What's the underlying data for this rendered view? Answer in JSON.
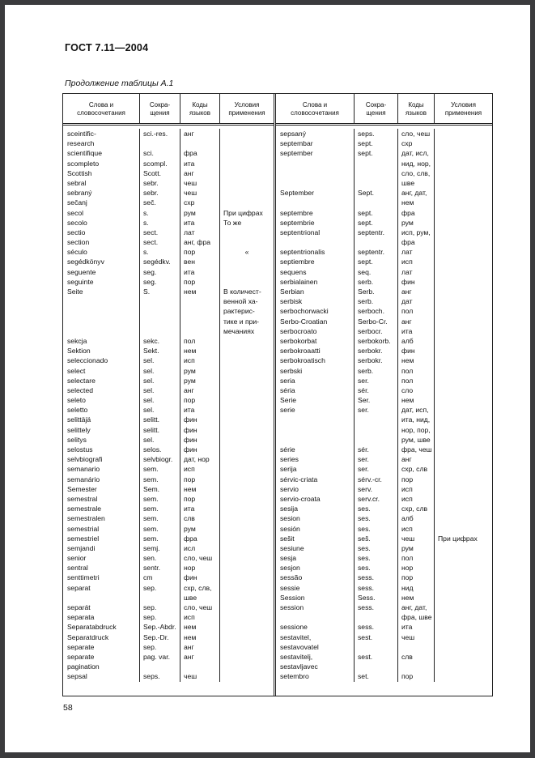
{
  "page": {
    "standard": "ГОСТ 7.11—2004",
    "table_caption": "Продолжение таблицы А.1",
    "page_number": "58"
  },
  "table": {
    "column_headers": [
      [
        "Слова и",
        "словосочетания"
      ],
      [
        "Сокра-",
        "щения"
      ],
      [
        "Коды",
        "языков"
      ],
      [
        "Условия",
        "применения"
      ]
    ],
    "left_rows": [
      [
        "sceintific-",
        "sci.-res.",
        "анг",
        ""
      ],
      [
        "research",
        "",
        "",
        ""
      ],
      [
        "scientifique",
        "sci.",
        "фра",
        ""
      ],
      [
        "scompleto",
        "scompl.",
        "ита",
        ""
      ],
      [
        "Scottish",
        "Scott.",
        "анг",
        ""
      ],
      [
        "sebral",
        "sebr.",
        "чеш",
        ""
      ],
      [
        "sebraný",
        "sebr.",
        "чеш",
        ""
      ],
      [
        "sečanj",
        "seč.",
        "схр",
        ""
      ],
      [
        "secol",
        "s.",
        "рум",
        "При цифрах"
      ],
      [
        "secolo",
        "s.",
        "ита",
        "То же"
      ],
      [
        "sectio",
        "sect.",
        "лат",
        ""
      ],
      [
        "section",
        "sect.",
        "анг, фра",
        ""
      ],
      [
        "século",
        "s.",
        "пор",
        "«"
      ],
      [
        "segédkönyv",
        "segédkv.",
        "вен",
        ""
      ],
      [
        "seguente",
        "seg.",
        "ита",
        ""
      ],
      [
        "seguinte",
        "seg.",
        "пор",
        ""
      ],
      [
        "Seite",
        "S.",
        "нем",
        "В количест-"
      ],
      [
        "",
        "",
        "",
        "венной ха-"
      ],
      [
        "",
        "",
        "",
        "рактерис-"
      ],
      [
        "",
        "",
        "",
        "тике и при-"
      ],
      [
        "",
        "",
        "",
        "мечаниях"
      ],
      [
        "sekcja",
        "sekc.",
        "пол",
        ""
      ],
      [
        "Sektion",
        "Sekt.",
        "нем",
        ""
      ],
      [
        "seleccionado",
        "sel.",
        "исп",
        ""
      ],
      [
        "select",
        "sel.",
        "рум",
        ""
      ],
      [
        "selectare",
        "sel.",
        "рум",
        ""
      ],
      [
        "selected",
        "sel.",
        "анг",
        ""
      ],
      [
        "seleto",
        "sel.",
        "пор",
        ""
      ],
      [
        "seletto",
        "sel.",
        "ита",
        ""
      ],
      [
        "selittäjä",
        "selitt.",
        "фин",
        ""
      ],
      [
        "selittely",
        "selitt.",
        "фин",
        ""
      ],
      [
        "selitys",
        "sel.",
        "фин",
        ""
      ],
      [
        "selostus",
        "selos.",
        "фин",
        ""
      ],
      [
        "selvbiografi",
        "selvbiogr.",
        "дат, нор",
        ""
      ],
      [
        "semanario",
        "sem.",
        "исп",
        ""
      ],
      [
        "semanário",
        "sem.",
        "пор",
        ""
      ],
      [
        "Semester",
        "Sem.",
        "нем",
        ""
      ],
      [
        "semestral",
        "sem.",
        "пор",
        ""
      ],
      [
        "semestrale",
        "sem.",
        "ита",
        ""
      ],
      [
        "semestralen",
        "sem.",
        "слв",
        ""
      ],
      [
        "semestrial",
        "sem.",
        "рум",
        ""
      ],
      [
        "semestriel",
        "sem.",
        "фра",
        ""
      ],
      [
        "semjandi",
        "semj.",
        "исл",
        ""
      ],
      [
        "senior",
        "sen.",
        "сло, чеш",
        ""
      ],
      [
        "sentral",
        "sentr.",
        "нор",
        ""
      ],
      [
        "senttimetri",
        "cm",
        "фин",
        ""
      ],
      [
        "separat",
        "sep.",
        "схр, слв,",
        ""
      ],
      [
        "",
        "",
        "шве",
        ""
      ],
      [
        "separát",
        "sep.",
        "сло, чеш",
        ""
      ],
      [
        "separata",
        "sep.",
        "исп",
        ""
      ],
      [
        "Separatabdruck",
        "Sep.-Abdr.",
        "нем",
        ""
      ],
      [
        "Separatdruck",
        "Sep.-Dr.",
        "нем",
        ""
      ],
      [
        "separate",
        "sep.",
        "анг",
        ""
      ],
      [
        "separate",
        "pag. var.",
        "анг",
        ""
      ],
      [
        "pagination",
        "",
        "",
        ""
      ],
      [
        "sepsal",
        "seps.",
        "чеш",
        ""
      ]
    ],
    "right_rows": [
      [
        "sepsaný",
        "seps.",
        "сло, чеш",
        ""
      ],
      [
        "septembar",
        "sept.",
        "схр",
        ""
      ],
      [
        "september",
        "sept.",
        "дат, исл,",
        ""
      ],
      [
        "",
        "",
        "нид, нор,",
        ""
      ],
      [
        "",
        "",
        "сло, слв,",
        ""
      ],
      [
        "",
        "",
        "шве",
        ""
      ],
      [
        "September",
        "Sept.",
        "анг, дат,",
        ""
      ],
      [
        "",
        "",
        "нем",
        ""
      ],
      [
        "septembre",
        "sept.",
        "фра",
        ""
      ],
      [
        "septembrie",
        "sept.",
        "рум",
        ""
      ],
      [
        "septentrional",
        "septentr.",
        "исп, рум,",
        ""
      ],
      [
        "",
        "",
        "фра",
        ""
      ],
      [
        "septentrionalis",
        "septentr.",
        "лат",
        ""
      ],
      [
        "septiembre",
        "sept.",
        "исп",
        ""
      ],
      [
        "sequens",
        "seq.",
        "лат",
        ""
      ],
      [
        "serbialainen",
        "serb.",
        "фин",
        ""
      ],
      [
        "Serbian",
        "Serb.",
        "анг",
        ""
      ],
      [
        "serbisk",
        "serb.",
        "дат",
        ""
      ],
      [
        "serbochorwacki",
        "serboch.",
        "пол",
        ""
      ],
      [
        "Serbo-Croatian",
        "Serbo-Cr.",
        "анг",
        ""
      ],
      [
        "serbocroato",
        "serbocr.",
        "ита",
        ""
      ],
      [
        "serbokorbat",
        "serbokorb.",
        "алб",
        ""
      ],
      [
        "serbokroaatti",
        "serbokr.",
        "фин",
        ""
      ],
      [
        "serbokroatisch",
        "serbokr.",
        "нем",
        ""
      ],
      [
        "serbski",
        "serb.",
        "пол",
        ""
      ],
      [
        "seria",
        "ser.",
        "пол",
        ""
      ],
      [
        "séria",
        "sér.",
        "сло",
        ""
      ],
      [
        "Serie",
        "Ser.",
        "нем",
        ""
      ],
      [
        "serie",
        "ser.",
        "дат, исп,",
        ""
      ],
      [
        "",
        "",
        "ита, нид,",
        ""
      ],
      [
        "",
        "",
        "нор, пор,",
        ""
      ],
      [
        "",
        "",
        "рум, шве",
        ""
      ],
      [
        "série",
        "sér.",
        "фра, чеш",
        ""
      ],
      [
        "series",
        "ser.",
        "анг",
        ""
      ],
      [
        "serija",
        "ser.",
        "схр, слв",
        ""
      ],
      [
        "sérvic-criata",
        "sérv.-cr.",
        "пор",
        ""
      ],
      [
        "servio",
        "serv.",
        "исп",
        ""
      ],
      [
        "servio-croata",
        "serv.cr.",
        "исп",
        ""
      ],
      [
        "sesija",
        "ses.",
        "схр, слв",
        ""
      ],
      [
        "sesion",
        "ses.",
        "алб",
        ""
      ],
      [
        "sesión",
        "ses.",
        "исп",
        ""
      ],
      [
        "sešit",
        "seš.",
        "чеш",
        "При цифрах"
      ],
      [
        "sesiune",
        "ses.",
        "рум",
        ""
      ],
      [
        "sesja",
        "ses.",
        "пол",
        ""
      ],
      [
        "sesjon",
        "ses.",
        "нор",
        ""
      ],
      [
        "sessão",
        "sess.",
        "пор",
        ""
      ],
      [
        "sessie",
        "sess.",
        "нид",
        ""
      ],
      [
        "Session",
        "Sess.",
        "нем",
        ""
      ],
      [
        "session",
        "sess.",
        "анг, дат,",
        ""
      ],
      [
        "",
        "",
        "фра, шве",
        ""
      ],
      [
        "sessione",
        "sess.",
        "ита",
        ""
      ],
      [
        "sestavitel,",
        "sest.",
        "чеш",
        ""
      ],
      [
        "sestavovatel",
        "",
        "",
        ""
      ],
      [
        "sestavitelj,",
        "sest.",
        "слв",
        ""
      ],
      [
        "sestavljavec",
        "",
        "",
        ""
      ],
      [
        "setembro",
        "set.",
        "пор",
        ""
      ]
    ]
  }
}
